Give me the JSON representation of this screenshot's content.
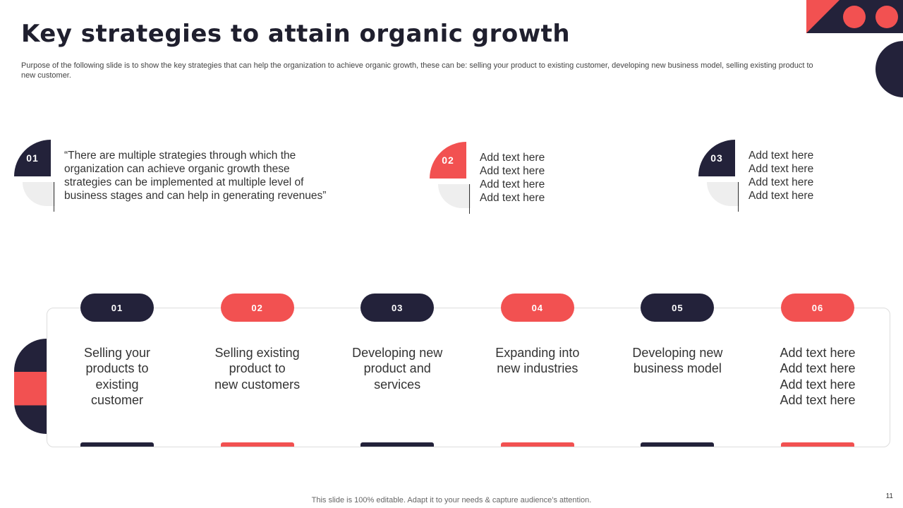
{
  "header": {
    "title": "Key strategies to attain organic growth",
    "subtitle": "Purpose of the following slide is to show the key strategies that can help the organization to achieve organic growth, these can be: selling your product to existing customer, developing new business model, selling existing product to new customer."
  },
  "notes": [
    {
      "number": "01",
      "lines": [
        "“There are multiple strategies through which the",
        "organization can achieve organic growth these",
        "strategies can be implemented at multiple level of",
        "business stages and can help in generating revenues”"
      ]
    },
    {
      "number": "02",
      "lines": [
        "Add text here",
        "Add text here",
        "Add text here",
        "Add text here"
      ]
    },
    {
      "number": "03",
      "lines": [
        "Add text here",
        "Add text here",
        "Add text here",
        "Add text here"
      ]
    }
  ],
  "strategies": [
    {
      "number": "01",
      "lines": [
        "Selling your",
        "products to",
        "existing",
        "customer"
      ]
    },
    {
      "number": "02",
      "lines": [
        "Selling existing",
        "product to",
        "new customers"
      ]
    },
    {
      "number": "03",
      "lines": [
        "Developing new",
        "product and",
        "services"
      ]
    },
    {
      "number": "04",
      "lines": [
        "Expanding into",
        "new industries"
      ]
    },
    {
      "number": "05",
      "lines": [
        "Developing new",
        "business model"
      ]
    },
    {
      "number": "06",
      "lines": [
        "Add text here",
        "Add text here",
        "Add text here",
        "Add text here"
      ]
    }
  ],
  "footer": "This slide is 100% editable. Adapt it to your needs & capture audience’s attention.",
  "page_number": "11"
}
